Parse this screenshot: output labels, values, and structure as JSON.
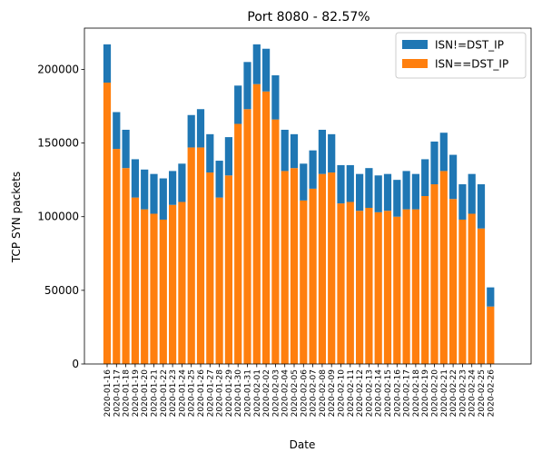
{
  "chart_data": {
    "type": "bar",
    "stacked": true,
    "title": "Port 8080 - 82.57%",
    "xlabel": "Date",
    "ylabel": "TCP SYN packets",
    "ylim": [
      0,
      228000
    ],
    "yticks": [
      0,
      50000,
      100000,
      150000,
      200000
    ],
    "ytick_labels": [
      "0",
      "50000",
      "100000",
      "150000",
      "200000"
    ],
    "legend_position": "top-right",
    "categories": [
      "2020-01-16",
      "2020-01-17",
      "2020-01-18",
      "2020-01-19",
      "2020-01-20",
      "2020-01-21",
      "2020-01-22",
      "2020-01-23",
      "2020-01-24",
      "2020-01-25",
      "2020-01-26",
      "2020-01-27",
      "2020-01-28",
      "2020-01-29",
      "2020-01-30",
      "2020-01-31",
      "2020-02-01",
      "2020-02-02",
      "2020-02-03",
      "2020-02-04",
      "2020-02-05",
      "2020-02-06",
      "2020-02-07",
      "2020-02-08",
      "2020-02-09",
      "2020-02-10",
      "2020-02-11",
      "2020-02-12",
      "2020-02-13",
      "2020-02-14",
      "2020-02-15",
      "2020-02-16",
      "2020-02-17",
      "2020-02-18",
      "2020-02-19",
      "2020-02-20",
      "2020-02-21",
      "2020-02-22",
      "2020-02-23",
      "2020-02-24",
      "2020-02-25",
      "2020-02-26"
    ],
    "series": [
      {
        "name": "ISN==DST_IP",
        "color": "#ff7f0e",
        "values": [
          191000,
          146000,
          133000,
          113000,
          105000,
          102000,
          98000,
          108000,
          110000,
          147000,
          147000,
          130000,
          113000,
          128000,
          163000,
          173000,
          190000,
          185000,
          166000,
          131000,
          133000,
          111000,
          119000,
          129000,
          130000,
          109000,
          110000,
          104000,
          106000,
          103000,
          104000,
          100000,
          105000,
          105000,
          114000,
          122000,
          131000,
          112000,
          98000,
          102000,
          92000,
          39000
        ]
      },
      {
        "name": "ISN!=DST_IP",
        "color": "#1f77b4",
        "values": [
          26000,
          25000,
          26000,
          26000,
          27000,
          27000,
          28000,
          23000,
          26000,
          22000,
          26000,
          26000,
          25000,
          26000,
          26000,
          32000,
          27000,
          29000,
          30000,
          28000,
          23000,
          25000,
          26000,
          30000,
          26000,
          26000,
          25000,
          25000,
          27000,
          25000,
          25000,
          25000,
          26000,
          24000,
          25000,
          29000,
          26000,
          30000,
          24000,
          27000,
          30000,
          13000
        ]
      }
    ]
  }
}
